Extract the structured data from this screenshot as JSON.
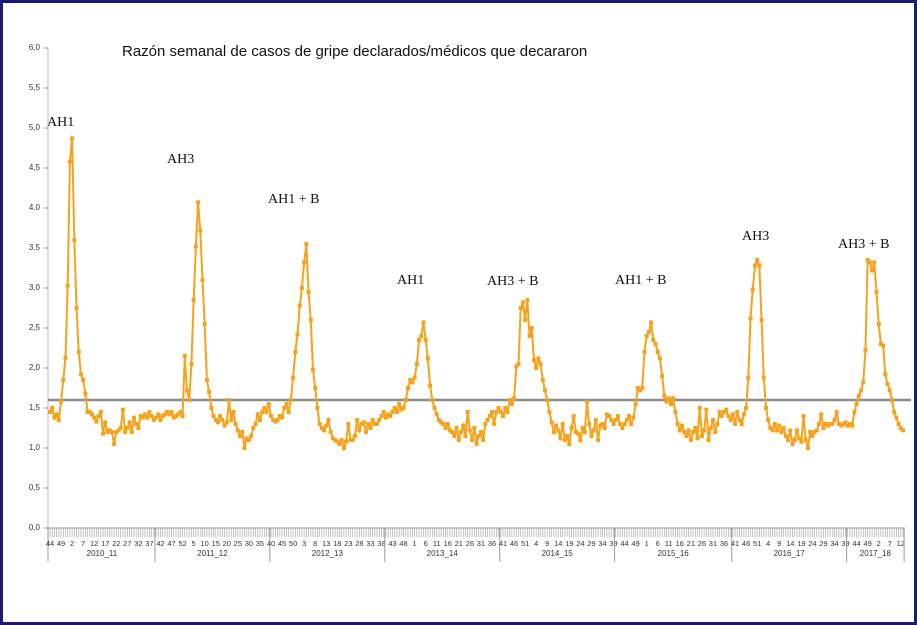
{
  "chart_data": {
    "type": "line",
    "title": "Razón semanal de casos de gripe declarados/médicos que decararon",
    "color": "#f7a21b",
    "threshold": 1.6,
    "threshold_color": "#8c8c8c",
    "ylim": [
      0,
      6
    ],
    "yticks": [
      {
        "value": 0,
        "label": "0,0"
      },
      {
        "value": 0.5,
        "label": "0,5"
      },
      {
        "value": 1,
        "label": "1,0"
      },
      {
        "value": 1.5,
        "label": "1,5"
      },
      {
        "value": 2,
        "label": "2,0"
      },
      {
        "value": 2.5,
        "label": "2,5"
      },
      {
        "value": 3,
        "label": "3,0"
      },
      {
        "value": 3.5,
        "label": "3.5"
      },
      {
        "value": 4,
        "label": "4.0"
      },
      {
        "value": 4.5,
        "label": "4,5"
      },
      {
        "value": 5,
        "label": "5,0"
      },
      {
        "value": 5.5,
        "label": "5,5"
      },
      {
        "value": 6,
        "label": "6,0"
      }
    ],
    "annotations": [
      "AH1",
      "AH3",
      "AH1 + B",
      "AH1",
      "AH3 + B",
      "AH1 + B",
      "AH3",
      "AH3 + B"
    ],
    "seasons": [
      {
        "name": "2010_11",
        "categories": [
          "44",
          null,
          null,
          null,
          null,
          "49",
          null,
          null,
          null,
          null,
          "2",
          null,
          null,
          null,
          null,
          "7",
          null,
          null,
          null,
          null,
          "12",
          null,
          null,
          null,
          null,
          "17",
          null,
          null,
          null,
          null,
          "22",
          null,
          null,
          null,
          null,
          "27",
          null,
          null,
          null,
          null,
          "32",
          null,
          null,
          null,
          null,
          "37",
          null,
          null
        ],
        "values": [
          1.45,
          1.5,
          1.38,
          1.42,
          1.35,
          1.58,
          1.85,
          2.13,
          3.03,
          4.58,
          4.87,
          3.6,
          2.75,
          2.2,
          1.92,
          1.85,
          1.68,
          1.45,
          1.45,
          1.42,
          1.38,
          1.33,
          1.4,
          1.45,
          1.18,
          1.32,
          1.2,
          1.22,
          1.2,
          1.05,
          1.2,
          1.22,
          1.25,
          1.48,
          1.2,
          1.25,
          1.32,
          1.2,
          1.38,
          1.3,
          1.25,
          1.4,
          1.38,
          1.42,
          1.38,
          1.45,
          1.4,
          1.35
        ]
      },
      {
        "name": "2011_12",
        "categories": [
          null,
          null,
          "42",
          null,
          null,
          null,
          null,
          "47",
          null,
          null,
          null,
          null,
          "52",
          null,
          null,
          null,
          null,
          "5",
          null,
          null,
          null,
          null,
          "10",
          null,
          null,
          null,
          null,
          "15",
          null,
          null,
          null,
          null,
          "20",
          null,
          null,
          null,
          null,
          "25",
          null,
          null,
          null,
          null,
          "30",
          null,
          null,
          null,
          null,
          "35",
          null,
          null,
          null,
          null
        ],
        "values": [
          1.38,
          1.42,
          1.35,
          1.4,
          1.42,
          1.45,
          1.42,
          1.45,
          1.38,
          1.4,
          1.42,
          1.45,
          1.4,
          2.15,
          1.72,
          1.6,
          2.05,
          2.85,
          3.52,
          4.07,
          3.72,
          3.1,
          2.55,
          1.85,
          1.7,
          1.5,
          1.4,
          1.35,
          1.32,
          1.4,
          1.35,
          1.28,
          1.32,
          1.6,
          1.35,
          1.45,
          1.3,
          1.22,
          1.15,
          1.2,
          1.0,
          1.12,
          1.1,
          1.15,
          1.25,
          1.3,
          1.42,
          1.35,
          1.45,
          1.5,
          1.45,
          1.55
        ]
      },
      {
        "name": "2012_13",
        "categories": [
          "40",
          null,
          null,
          null,
          null,
          "45",
          null,
          null,
          null,
          null,
          "50",
          null,
          null,
          null,
          null,
          "3",
          null,
          null,
          null,
          null,
          "8",
          null,
          null,
          null,
          null,
          "13",
          null,
          null,
          null,
          null,
          "18",
          null,
          null,
          null,
          null,
          "23",
          null,
          null,
          null,
          null,
          "28",
          null,
          null,
          null,
          null,
          "33",
          null,
          null,
          null,
          null,
          "38",
          null
        ],
        "values": [
          1.4,
          1.35,
          1.33,
          1.35,
          1.4,
          1.38,
          1.5,
          1.55,
          1.45,
          1.6,
          1.88,
          2.2,
          2.42,
          2.78,
          3.0,
          3.32,
          3.55,
          2.95,
          2.6,
          1.98,
          1.75,
          1.5,
          1.3,
          1.25,
          1.22,
          1.28,
          1.35,
          1.2,
          1.12,
          1.1,
          1.08,
          1.05,
          1.1,
          1.0,
          1.08,
          1.3,
          1.1,
          1.1,
          1.15,
          1.35,
          1.22,
          1.3,
          1.32,
          1.2,
          1.3,
          1.25,
          1.35,
          1.3,
          1.3,
          1.35,
          1.4,
          1.45
        ]
      },
      {
        "name": "2013_14",
        "categories": [
          null,
          null,
          null,
          "43",
          null,
          null,
          null,
          null,
          "48",
          null,
          null,
          null,
          null,
          "1",
          null,
          null,
          null,
          null,
          "6",
          null,
          null,
          null,
          null,
          "11",
          null,
          null,
          null,
          null,
          "16",
          null,
          null,
          null,
          null,
          "21",
          null,
          null,
          null,
          null,
          "26",
          null,
          null,
          null,
          null,
          "31",
          null,
          null,
          null,
          null,
          "36",
          null,
          null,
          null
        ],
        "values": [
          1.38,
          1.42,
          1.4,
          1.45,
          1.5,
          1.45,
          1.55,
          1.48,
          1.5,
          1.6,
          1.75,
          1.85,
          1.82,
          1.88,
          2.05,
          2.35,
          2.4,
          2.57,
          2.35,
          2.12,
          1.78,
          1.6,
          1.5,
          1.42,
          1.35,
          1.32,
          1.3,
          1.25,
          1.3,
          1.22,
          1.2,
          1.15,
          1.25,
          1.1,
          1.2,
          1.28,
          1.15,
          1.45,
          1.22,
          1.1,
          1.25,
          1.05,
          1.15,
          1.2,
          1.1,
          1.3,
          1.35,
          1.4,
          1.45,
          1.3,
          1.45,
          1.5
        ]
      },
      {
        "name": "2014_15",
        "categories": [
          null,
          "41",
          null,
          null,
          null,
          null,
          "46",
          null,
          null,
          null,
          null,
          "51",
          null,
          null,
          null,
          null,
          "4",
          null,
          null,
          null,
          null,
          "9",
          null,
          null,
          null,
          null,
          "14",
          null,
          null,
          null,
          null,
          "19",
          null,
          null,
          null,
          null,
          "24",
          null,
          null,
          null,
          null,
          "29",
          null,
          null,
          null,
          null,
          "34",
          null,
          null,
          null,
          null,
          "39"
        ],
        "values": [
          1.45,
          1.4,
          1.5,
          1.45,
          1.6,
          1.55,
          1.62,
          2.02,
          2.05,
          2.75,
          2.82,
          2.6,
          2.85,
          2.4,
          2.5,
          2.1,
          2.0,
          2.12,
          2.05,
          1.85,
          1.72,
          1.6,
          1.45,
          1.32,
          1.2,
          1.28,
          1.22,
          1.12,
          1.3,
          1.1,
          1.15,
          1.05,
          1.25,
          1.4,
          1.2,
          1.18,
          1.1,
          1.25,
          1.2,
          1.58,
          1.3,
          1.15,
          1.22,
          1.35,
          1.1,
          1.28,
          1.3,
          1.25,
          1.42,
          1.4,
          1.35,
          1.3
        ]
      },
      {
        "name": "2015_16",
        "categories": [
          null,
          null,
          null,
          null,
          "44",
          null,
          null,
          null,
          null,
          "49",
          null,
          null,
          null,
          null,
          "1",
          null,
          null,
          null,
          null,
          "6",
          null,
          null,
          null,
          null,
          "11",
          null,
          null,
          null,
          null,
          "16",
          null,
          null,
          null,
          null,
          "21",
          null,
          null,
          null,
          null,
          "26",
          null,
          null,
          null,
          null,
          "31",
          null,
          null,
          null,
          null,
          "36",
          null,
          null,
          null
        ],
        "values": [
          1.35,
          1.4,
          1.3,
          1.25,
          1.3,
          1.35,
          1.4,
          1.3,
          1.38,
          1.55,
          1.75,
          1.72,
          1.75,
          2.2,
          2.4,
          2.45,
          2.57,
          2.35,
          2.3,
          2.2,
          2.12,
          1.9,
          1.65,
          1.58,
          1.62,
          1.55,
          1.62,
          1.45,
          1.3,
          1.22,
          1.28,
          1.2,
          1.15,
          1.22,
          1.1,
          1.2,
          1.25,
          1.12,
          1.5,
          1.15,
          1.22,
          1.48,
          1.1,
          1.25,
          1.35,
          1.2,
          1.3,
          1.45,
          1.4,
          1.45,
          1.48,
          1.4,
          1.35
        ]
      },
      {
        "name": "2016_17",
        "categories": [
          null,
          "41",
          null,
          null,
          null,
          null,
          "46",
          null,
          null,
          null,
          null,
          "51",
          null,
          null,
          null,
          null,
          "4",
          null,
          null,
          null,
          null,
          "9",
          null,
          null,
          null,
          null,
          "14",
          null,
          null,
          null,
          null,
          "19",
          null,
          null,
          null,
          null,
          "24",
          null,
          null,
          null,
          null,
          "29",
          null,
          null,
          null,
          null,
          "34",
          null,
          null,
          null,
          null,
          "39"
        ],
        "values": [
          1.42,
          1.3,
          1.45,
          1.35,
          1.3,
          1.42,
          1.5,
          1.88,
          2.62,
          2.98,
          3.28,
          3.35,
          3.28,
          2.6,
          1.88,
          1.5,
          1.35,
          1.25,
          1.22,
          1.3,
          1.22,
          1.28,
          1.2,
          1.25,
          1.15,
          1.1,
          1.22,
          1.05,
          1.1,
          1.22,
          1.12,
          1.08,
          1.4,
          1.1,
          1.0,
          1.2,
          1.15,
          1.2,
          1.22,
          1.3,
          1.42,
          1.25,
          1.3,
          1.28,
          1.3,
          1.3,
          1.35,
          1.45,
          1.3,
          1.28,
          1.3,
          1.32
        ]
      },
      {
        "name": "2017_18",
        "categories": [
          null,
          null,
          null,
          null,
          "44",
          null,
          null,
          null,
          null,
          "49",
          null,
          null,
          null,
          null,
          "2",
          null,
          null,
          null,
          null,
          "7",
          null,
          null,
          null,
          null,
          "12",
          null
        ],
        "values": [
          1.28,
          1.3,
          1.28,
          1.45,
          1.55,
          1.65,
          1.72,
          1.82,
          2.22,
          3.35,
          3.32,
          3.22,
          3.32,
          2.95,
          2.55,
          2.3,
          2.28,
          1.92,
          1.8,
          1.72,
          1.6,
          1.45,
          1.38,
          1.3,
          1.25,
          1.22
        ]
      }
    ]
  }
}
